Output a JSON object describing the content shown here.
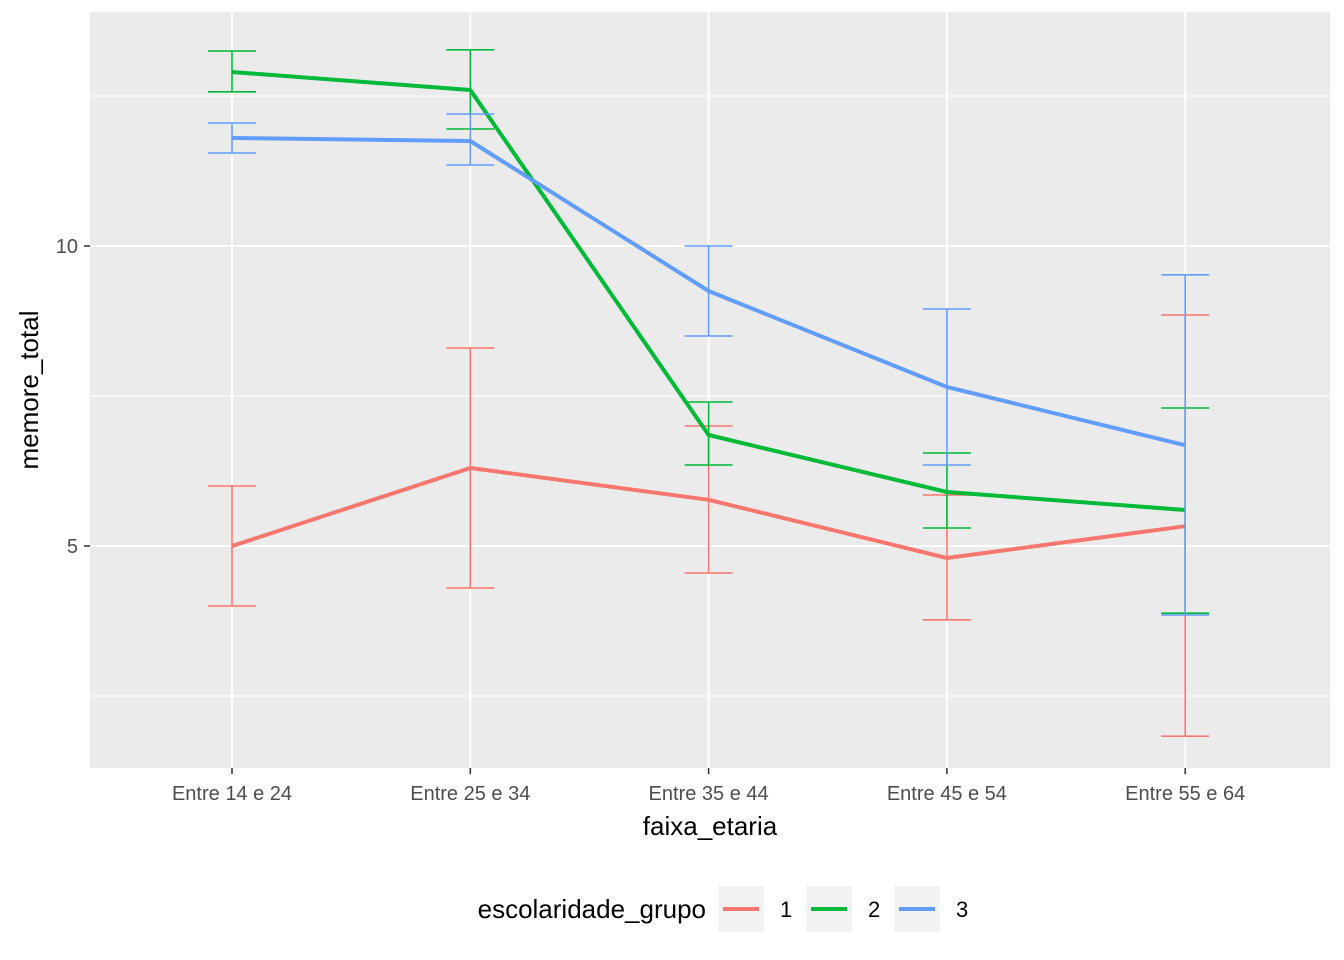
{
  "chart_data": {
    "type": "line",
    "title": "",
    "xlabel": "faixa_etaria",
    "ylabel": "memore_total",
    "categories": [
      "Entre 14 e 24",
      "Entre 25 e 34",
      "Entre 35 e 44",
      "Entre 45 e 54",
      "Entre 55 e 64"
    ],
    "ylim": [
      1.3,
      13.9
    ],
    "yticks": [
      5,
      10
    ],
    "y_minor_gridlines": [
      2.5,
      7.5,
      12.5
    ],
    "grid": true,
    "legend": {
      "title": "escolaridade_grupo",
      "placement": "bottom"
    },
    "series": [
      {
        "name": "1",
        "color": "#F8766D",
        "values": [
          5.0,
          6.3,
          5.77,
          4.8,
          5.33
        ],
        "lower": [
          4.0,
          4.3,
          4.55,
          3.77,
          1.83
        ],
        "upper": [
          6.0,
          8.3,
          7.0,
          5.85,
          8.85
        ]
      },
      {
        "name": "2",
        "color": "#00BA38",
        "values": [
          12.9,
          12.6,
          6.85,
          5.9,
          5.6
        ],
        "lower": [
          12.57,
          11.95,
          6.35,
          5.3,
          3.88
        ],
        "upper": [
          13.25,
          13.27,
          7.4,
          6.55,
          7.3
        ]
      },
      {
        "name": "3",
        "color": "#619CFF",
        "values": [
          11.8,
          11.75,
          9.25,
          7.65,
          6.68
        ],
        "lower": [
          11.55,
          11.35,
          8.5,
          6.35,
          3.85
        ],
        "upper": [
          12.05,
          12.2,
          10.0,
          8.95,
          9.52
        ]
      }
    ]
  }
}
